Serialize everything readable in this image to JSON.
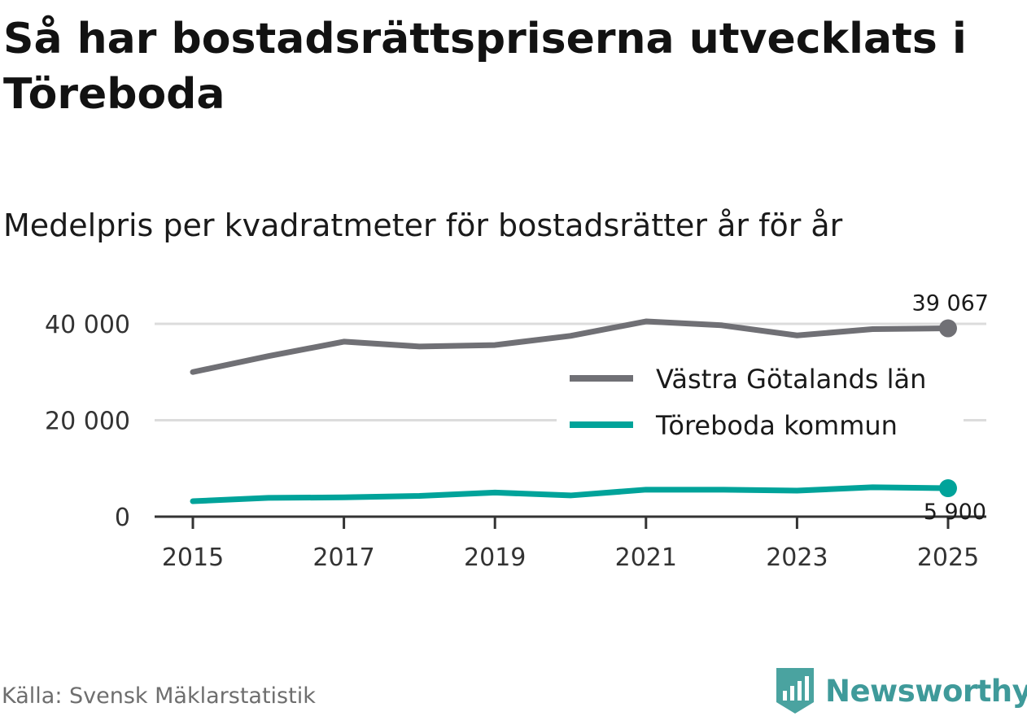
{
  "header": {
    "title": "Så har bostadsrättspriserna utvecklats i Töreboda",
    "subtitle": "Medelpris per kvadratmeter för bostadsrätter år för år"
  },
  "footer": {
    "source": "Källa: Svensk Mäklarstatistik",
    "brand": "Newsworthy",
    "brand_color": "#3f9a9a"
  },
  "chart_data": {
    "type": "line",
    "title": "Så har bostadsrättspriserna utvecklats i Töreboda",
    "subtitle": "Medelpris per kvadratmeter för bostadsrätter år för år",
    "xlabel": "",
    "ylabel": "",
    "x": [
      2015,
      2016,
      2017,
      2018,
      2019,
      2020,
      2021,
      2022,
      2023,
      2024,
      2025
    ],
    "x_ticks": [
      2015,
      2017,
      2019,
      2021,
      2023,
      2025
    ],
    "x_tick_labels": [
      "2015",
      "2017",
      "2019",
      "2021",
      "2023",
      "2025"
    ],
    "ylim": [
      0,
      40000
    ],
    "y_ticks": [
      0,
      20000,
      40000
    ],
    "y_tick_labels": [
      "0",
      "20 000",
      "40 000"
    ],
    "grid": true,
    "legend_position": "right",
    "series": [
      {
        "name": "Västra Götalands län",
        "color": "#707075",
        "values": [
          30000,
          33300,
          36300,
          35300,
          35600,
          37500,
          40500,
          39700,
          37600,
          38900,
          39067
        ],
        "end_label": "39 067"
      },
      {
        "name": "Töreboda kommun",
        "color": "#00a39a",
        "values": [
          3200,
          3900,
          4000,
          4300,
          5000,
          4400,
          5600,
          5600,
          5400,
          6100,
          5900
        ],
        "end_label": "5 900"
      }
    ]
  }
}
